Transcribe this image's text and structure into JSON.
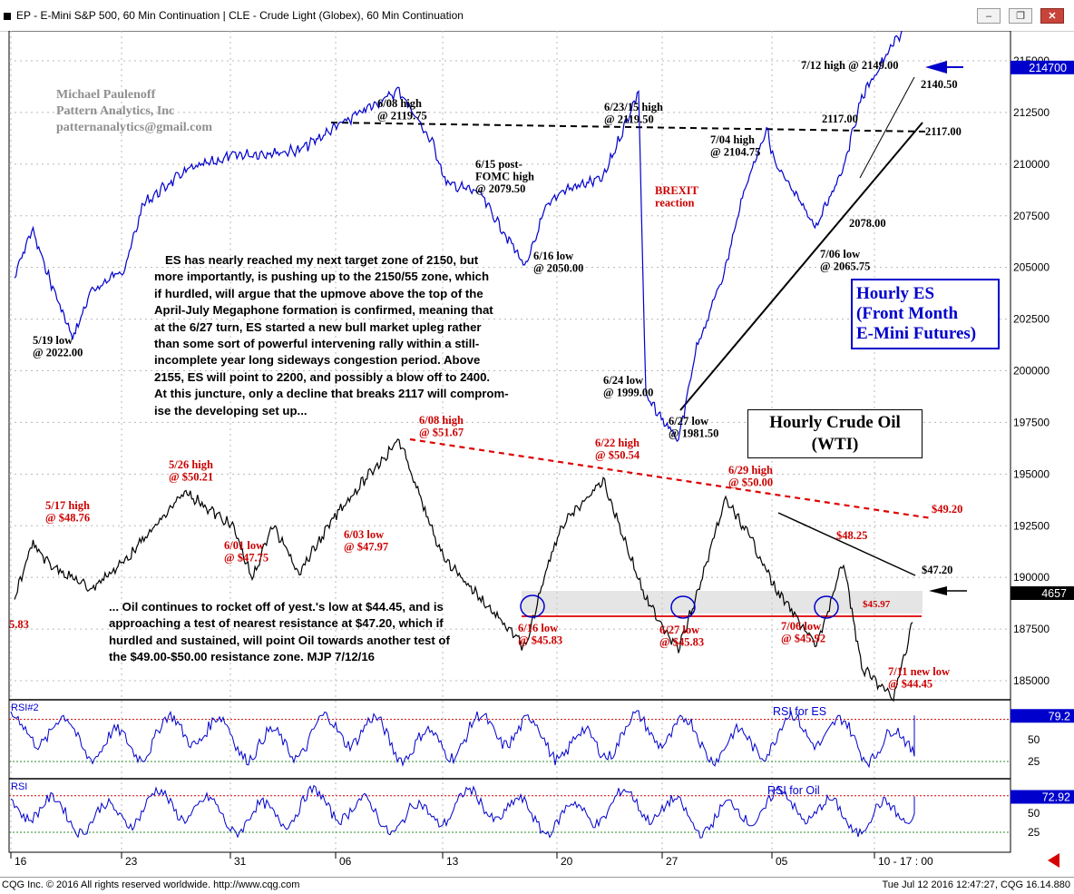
{
  "window": {
    "title": "EP - E-Mini S&P 500, 60 Min Continuation   |   CLE - Crude Light (Globex), 60 Min Continuation",
    "minimize_label": "‒",
    "restore_label": "❐",
    "close_label": "✕"
  },
  "footer": {
    "copyright": "CQG Inc. © 2016 All rights reserved worldwide. http://www.cqg.com",
    "timestamp": "Tue Jul 12 2016 12:47:27, CQG 16.14.880"
  },
  "watermark": {
    "lines": [
      "Michael Paulenoff",
      "Pattern Analytics, Inc",
      "patternanalytics@gmail.com"
    ]
  },
  "es_note": {
    "lines": [
      "ES has nearly reached my next target zone of 2150, but",
      "more importantly, is pushing up to the 2150/55 zone, which",
      "if hurdled, will argue that the upmove above the top of the",
      "April-July Megaphone formation is confirmed, meaning that",
      "at the 6/27 turn, ES started a new bull market upleg rather",
      "than some sort of powerful intervening rally within a still-",
      "incomplete year long sideways congestion period. Above",
      "2155, ES will point to 2200, and possibly a blow off to 2400.",
      "At this juncture, only a decline that breaks 2117 will comprom-",
      "ise the developing set up..."
    ]
  },
  "oil_note": {
    "lines": [
      "... Oil continues to rocket off of yest.'s low at $44.45, and is",
      "approaching a test of nearest resistance at $47.20, which if",
      "hurdled and sustained, will point Oil towards another test of",
      "the $49.00-$50.00 resistance zone. MJP 7/12/16"
    ]
  },
  "es_box": {
    "lines": [
      "Hourly ES",
      "(Front Month",
      "E-Mini Futures)"
    ]
  },
  "oil_box": {
    "lines": [
      "Hourly Crude Oil",
      "(WTI)"
    ]
  },
  "chart_data": {
    "type": "line",
    "x_axis": {
      "tick_labels": [
        "16",
        "23",
        "31",
        "06",
        "13",
        "20",
        "27",
        "05",
        "10 - 17 : 00"
      ]
    },
    "price_axis": {
      "tick_labels": [
        "215000",
        "212500",
        "210000",
        "207500",
        "205000",
        "202500",
        "200000",
        "197500",
        "195000",
        "192500",
        "190000",
        "187500",
        "185000"
      ],
      "ylim": [
        184000,
        216500
      ]
    },
    "series": [
      {
        "name": "EP - E-Mini S&P 500, 60 Min Continuation",
        "color": "#0000cc",
        "last_value_label": "214700",
        "points": [
          {
            "date": "5/16",
            "y": 2046.0
          },
          {
            "date": "5/17",
            "y": 2065.0
          },
          {
            "date": "5/18",
            "y": 2045.0
          },
          {
            "date": "5/19",
            "y": 2022.0
          },
          {
            "date": "5/20",
            "y": 2040.0
          },
          {
            "date": "5/23",
            "y": 2050.0
          },
          {
            "date": "5/24",
            "y": 2075.0
          },
          {
            "date": "5/26",
            "y": 2088.0
          },
          {
            "date": "5/31",
            "y": 2094.0
          },
          {
            "date": "6/03",
            "y": 2096.0
          },
          {
            "date": "6/06",
            "y": 2106.0
          },
          {
            "date": "6/08",
            "y": 2119.75
          },
          {
            "date": "6/10",
            "y": 2098.0
          },
          {
            "date": "6/13",
            "y": 2083.0
          },
          {
            "date": "6/15",
            "y": 2079.5
          },
          {
            "date": "6/16",
            "y": 2050.0
          },
          {
            "date": "6/17",
            "y": 2072.0
          },
          {
            "date": "6/20",
            "y": 2080.0
          },
          {
            "date": "6/22",
            "y": 2085.0
          },
          {
            "date": "6/23",
            "y": 2119.5
          },
          {
            "date": "6/24",
            "y": 1999.0
          },
          {
            "date": "6/27",
            "y": 1981.5
          },
          {
            "date": "6/28",
            "y": 2018.0
          },
          {
            "date": "6/29",
            "y": 2050.0
          },
          {
            "date": "6/30",
            "y": 2080.0
          },
          {
            "date": "7/04",
            "y": 2104.75
          },
          {
            "date": "7/05",
            "y": 2090.0
          },
          {
            "date": "7/06",
            "y": 2065.75
          },
          {
            "date": "7/07",
            "y": 2090.0
          },
          {
            "date": "7/08",
            "y": 2117.0
          },
          {
            "date": "7/11",
            "y": 2138.0
          },
          {
            "date": "7/12",
            "y": 2149.0
          }
        ]
      },
      {
        "name": "CLE - Crude Light (Globex), 60 Min Continuation",
        "color": "#000000",
        "last_value_label": "4657",
        "points": [
          {
            "date": "5/16",
            "y": 47.2
          },
          {
            "date": "5/17",
            "y": 48.76
          },
          {
            "date": "5/18",
            "y": 48.2
          },
          {
            "date": "5/20",
            "y": 47.5
          },
          {
            "date": "5/23",
            "y": 48.3
          },
          {
            "date": "5/26",
            "y": 50.21
          },
          {
            "date": "5/31",
            "y": 49.2
          },
          {
            "date": "6/01",
            "y": 47.75
          },
          {
            "date": "6/02",
            "y": 49.3
          },
          {
            "date": "6/03",
            "y": 47.97
          },
          {
            "date": "6/06",
            "y": 49.7
          },
          {
            "date": "6/08",
            "y": 51.67
          },
          {
            "date": "6/10",
            "y": 49.0
          },
          {
            "date": "6/13",
            "y": 48.3
          },
          {
            "date": "6/16",
            "y": 45.83
          },
          {
            "date": "6/17",
            "y": 47.9
          },
          {
            "date": "6/20",
            "y": 49.2
          },
          {
            "date": "6/22",
            "y": 50.54
          },
          {
            "date": "6/24",
            "y": 47.2
          },
          {
            "date": "6/27",
            "y": 45.83
          },
          {
            "date": "6/28",
            "y": 47.3
          },
          {
            "date": "6/29",
            "y": 50.0
          },
          {
            "date": "7/01",
            "y": 48.8
          },
          {
            "date": "7/05",
            "y": 47.5
          },
          {
            "date": "7/06",
            "y": 45.92
          },
          {
            "date": "7/07",
            "y": 48.25
          },
          {
            "date": "7/08",
            "y": 45.3
          },
          {
            "date": "7/11",
            "y": 44.45
          },
          {
            "date": "7/12",
            "y": 46.57
          }
        ]
      }
    ],
    "rsi_panels": [
      {
        "header": "RSI#2",
        "title": "RSI for ES",
        "tick_labels": [
          "50",
          "25"
        ],
        "last_value_label": "79.2",
        "last_value": 79.2
      },
      {
        "header": "RSI",
        "title": "RSI for Oil",
        "tick_labels": [
          "50",
          "25"
        ],
        "last_value_label": "72.92",
        "last_value": 72.92
      }
    ],
    "annotations": [
      {
        "id": "es-0608",
        "lines": [
          "6/08 high",
          "@ 2119.75"
        ],
        "color": "#000000"
      },
      {
        "id": "es-0623",
        "lines": [
          "6/23/15 high",
          "@ 2119.50"
        ],
        "color": "#000000"
      },
      {
        "id": "es-0615",
        "lines": [
          "6/15 post-",
          "FOMC high",
          "@ 2079.50"
        ],
        "color": "#000000"
      },
      {
        "id": "es-0616",
        "lines": [
          "6/16 low",
          "@ 2050.00"
        ],
        "color": "#000000"
      },
      {
        "id": "es-0519",
        "lines": [
          "5/19 low",
          "@ 2022.00"
        ],
        "color": "#000000"
      },
      {
        "id": "es-0624",
        "lines": [
          "6/24 low",
          "@ 1999.00"
        ],
        "color": "#000000"
      },
      {
        "id": "es-0627",
        "lines": [
          "6/27 low",
          "@ 1981.50"
        ],
        "color": "#000000"
      },
      {
        "id": "es-0704",
        "lines": [
          "7/04 high",
          "@ 2104.75"
        ],
        "color": "#000000"
      },
      {
        "id": "es-0706",
        "lines": [
          "7/06 low",
          "@ 2065.75"
        ],
        "color": "#000000"
      },
      {
        "id": "es-0712",
        "lines": [
          "7/12 high @ 2149.00"
        ],
        "color": "#000000"
      },
      {
        "id": "es-2140",
        "lines": [
          "2140.50"
        ],
        "color": "#000000"
      },
      {
        "id": "es-2117a",
        "lines": [
          "2117.00"
        ],
        "color": "#000000"
      },
      {
        "id": "es-2117b",
        "lines": [
          "2117.00"
        ],
        "color": "#000000"
      },
      {
        "id": "es-2078",
        "lines": [
          "2078.00"
        ],
        "color": "#000000"
      },
      {
        "id": "brexit",
        "lines": [
          "BREXIT",
          "reaction"
        ],
        "color": "#cc0000"
      },
      {
        "id": "cl-0608",
        "lines": [
          "6/08 high",
          "@ $51.67"
        ],
        "color": "#cc0000"
      },
      {
        "id": "cl-0622",
        "lines": [
          "6/22 high",
          "@ $50.54"
        ],
        "color": "#cc0000"
      },
      {
        "id": "cl-0629",
        "lines": [
          "6/29 high",
          "@ $50.00"
        ],
        "color": "#cc0000"
      },
      {
        "id": "cl-0526",
        "lines": [
          "5/26 high",
          "@ $50.21"
        ],
        "color": "#cc0000"
      },
      {
        "id": "cl-0517",
        "lines": [
          "5/17 high",
          "@ $48.76"
        ],
        "color": "#cc0000"
      },
      {
        "id": "cl-0601",
        "lines": [
          "6/01 low",
          "@ $47.75"
        ],
        "color": "#cc0000"
      },
      {
        "id": "cl-0603",
        "lines": [
          "6/03 low",
          "@ $47.97"
        ],
        "color": "#cc0000"
      },
      {
        "id": "cl-0616",
        "lines": [
          "6/16 low",
          "@ $45.83"
        ],
        "color": "#cc0000"
      },
      {
        "id": "cl-0627",
        "lines": [
          "6/27 low",
          "@ $45.83"
        ],
        "color": "#cc0000"
      },
      {
        "id": "cl-0706",
        "lines": [
          "7/06 low",
          "@ $45.92"
        ],
        "color": "#cc0000"
      },
      {
        "id": "cl-0711",
        "lines": [
          "7/11 new low",
          "@ $44.45"
        ],
        "color": "#cc0000"
      },
      {
        "id": "cl-4920",
        "lines": [
          "$49.20"
        ],
        "color": "#cc0000"
      },
      {
        "id": "cl-4825",
        "lines": [
          "$48.25"
        ],
        "color": "#cc0000"
      },
      {
        "id": "cl-4720",
        "lines": [
          "$47.20"
        ],
        "color": "#000000"
      },
      {
        "id": "cl-4597",
        "lines": [
          "$45.97"
        ],
        "color": "#cc0000"
      },
      {
        "id": "cl-left",
        "lines": [
          "5.83"
        ],
        "color": "#cc0000"
      }
    ],
    "grid": true,
    "colors": {
      "es_line": "#0000cc",
      "oil_line": "#000000",
      "annotation_red": "#cc0000",
      "support_red": "#dd0000",
      "box_border_blue": "#0000cc"
    }
  }
}
